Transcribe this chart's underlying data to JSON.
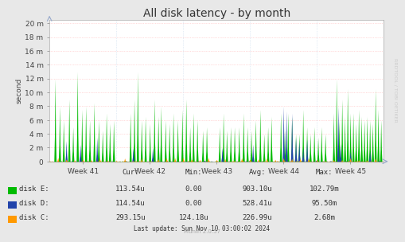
{
  "title": "All disk latency - by month",
  "ylabel": "second",
  "yticks_labels": [
    "0",
    "2 m",
    "4 m",
    "6 m",
    "8 m",
    "10 m",
    "12 m",
    "14 m",
    "16 m",
    "18 m",
    "20 m"
  ],
  "yticks_values": [
    0.0,
    0.002,
    0.004,
    0.006,
    0.008,
    0.01,
    0.012,
    0.014,
    0.016,
    0.018,
    0.02
  ],
  "ymax": 0.0205,
  "xtick_labels": [
    "Week 41",
    "Week 42",
    "Week 43",
    "Week 44",
    "Week 45"
  ],
  "bg_color": "#e8e8e8",
  "plot_bg_color": "#ffffff",
  "grid_color_h": "#ffbbbb",
  "grid_color_v": "#ccddee",
  "line_color_E": "#00bb00",
  "line_color_D": "#2244aa",
  "line_color_C": "#ff9900",
  "legend": [
    {
      "label": "disk E:",
      "cur": "113.54u",
      "min": "0.00",
      "avg": "903.10u",
      "max": "102.79m",
      "color": "#00bb00"
    },
    {
      "label": "disk D:",
      "cur": "114.54u",
      "min": "0.00",
      "avg": "528.41u",
      "max": "95.50m",
      "color": "#2244aa"
    },
    {
      "label": "disk C:",
      "cur": "293.15u",
      "min": "124.18u",
      "avg": "226.99u",
      "max": "2.68m",
      "color": "#ff9900"
    }
  ],
  "footer_text": "Last update: Sun Nov 10 03:00:02 2024",
  "munin_text": "Munin 2.0.57",
  "rrdtool_text": "RRDTOOL / TOBI OETIKER",
  "title_fontsize": 10,
  "axis_fontsize": 6.5,
  "legend_fontsize": 6.5
}
